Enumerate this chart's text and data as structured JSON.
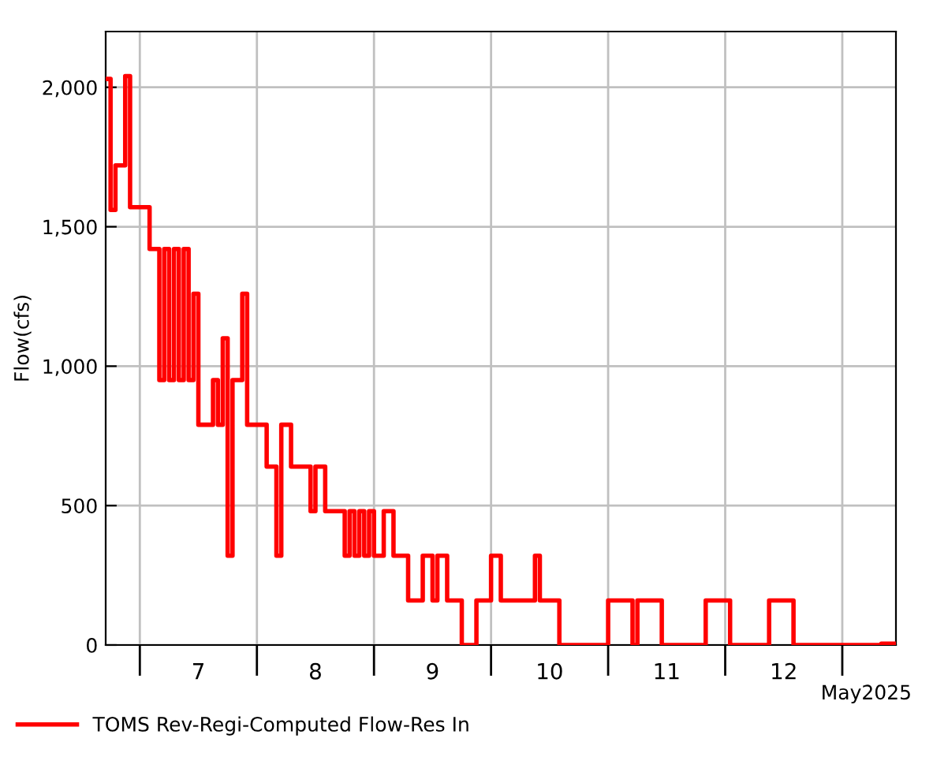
{
  "chart_data": {
    "type": "step",
    "ylabel": "Flow(cfs)",
    "annotations": [
      "May2025"
    ],
    "xlim": [
      "2025-05-06T17:00",
      "2025-05-13T11:00"
    ],
    "xticks": [
      {
        "value": "2025-05-07T00:00",
        "label": null
      },
      {
        "value": "2025-05-08T00:00",
        "label": null
      },
      {
        "value": "2025-05-09T00:00",
        "label": null
      },
      {
        "value": "2025-05-10T00:00",
        "label": null
      },
      {
        "value": "2025-05-11T00:00",
        "label": null
      },
      {
        "value": "2025-05-12T00:00",
        "label": null
      },
      {
        "value": "2025-05-13T00:00",
        "label": null
      },
      {
        "value": "2025-05-07T12:00",
        "label": "7"
      },
      {
        "value": "2025-05-08T12:00",
        "label": "8"
      },
      {
        "value": "2025-05-09T12:00",
        "label": "9"
      },
      {
        "value": "2025-05-10T12:00",
        "label": "10"
      },
      {
        "value": "2025-05-11T12:00",
        "label": "11"
      },
      {
        "value": "2025-05-12T12:00",
        "label": "12"
      }
    ],
    "ylim": [
      0,
      2200
    ],
    "yticks": [
      0,
      {
        "value": 500,
        "label": "500"
      },
      {
        "value": 1000,
        "label": "1,000"
      },
      {
        "value": 1500,
        "label": "1,500"
      },
      {
        "value": 2000,
        "label": "2,000"
      }
    ],
    "grid": true,
    "legend": "bottom left",
    "line_style": "solid",
    "marker": "none",
    "series": [
      {
        "name": "TOMS Rev-Regi-Computed Flow-Res In",
        "color": "#ff0000",
        "x": [
          "2025-05-06T17:00",
          "2025-05-06T18:00",
          "2025-05-06T19:00",
          "2025-05-06T21:00",
          "2025-05-06T22:00",
          "2025-05-07T02:00",
          "2025-05-07T04:00",
          "2025-05-07T05:00",
          "2025-05-07T06:00",
          "2025-05-07T07:00",
          "2025-05-07T08:00",
          "2025-05-07T09:00",
          "2025-05-07T10:00",
          "2025-05-07T11:00",
          "2025-05-07T12:00",
          "2025-05-07T15:00",
          "2025-05-07T16:00",
          "2025-05-07T17:00",
          "2025-05-07T18:00",
          "2025-05-07T19:00",
          "2025-05-07T21:00",
          "2025-05-07T22:00",
          "2025-05-08T02:00",
          "2025-05-08T04:00",
          "2025-05-08T05:00",
          "2025-05-08T07:00",
          "2025-05-08T11:00",
          "2025-05-08T12:00",
          "2025-05-08T14:00",
          "2025-05-08T18:00",
          "2025-05-08T19:00",
          "2025-05-08T20:00",
          "2025-05-08T21:00",
          "2025-05-08T22:00",
          "2025-05-08T23:00",
          "2025-05-09T00:00",
          "2025-05-09T02:00",
          "2025-05-09T04:00",
          "2025-05-09T07:00",
          "2025-05-09T10:00",
          "2025-05-09T12:00",
          "2025-05-09T13:00",
          "2025-05-09T15:00",
          "2025-05-09T18:00",
          "2025-05-09T21:00",
          "2025-05-10T00:00",
          "2025-05-10T02:00",
          "2025-05-10T09:00",
          "2025-05-10T10:00",
          "2025-05-10T14:00",
          "2025-05-11T00:00",
          "2025-05-11T05:00",
          "2025-05-11T06:00",
          "2025-05-11T11:00",
          "2025-05-11T20:00",
          "2025-05-12T01:00",
          "2025-05-12T09:00",
          "2025-05-12T14:00",
          "2025-05-13T08:00",
          "2025-05-13T11:00"
        ],
        "values": [
          2030,
          1560,
          1720,
          2040,
          1570,
          1420,
          950,
          1420,
          950,
          1420,
          950,
          1420,
          950,
          1260,
          790,
          950,
          790,
          1100,
          320,
          950,
          1260,
          790,
          640,
          320,
          790,
          640,
          480,
          640,
          480,
          320,
          480,
          320,
          480,
          320,
          480,
          320,
          480,
          320,
          160,
          320,
          160,
          320,
          160,
          0,
          160,
          320,
          160,
          320,
          160,
          0,
          160,
          0,
          160,
          0,
          160,
          0,
          160,
          0,
          5,
          5
        ]
      }
    ]
  }
}
